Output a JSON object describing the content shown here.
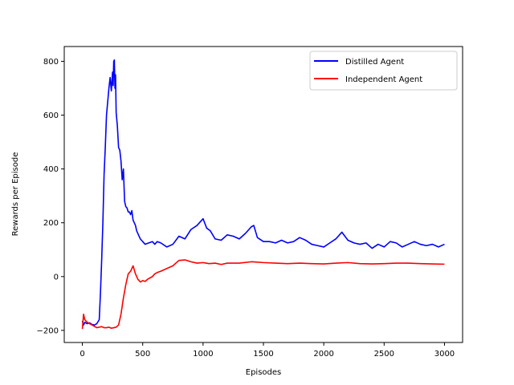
{
  "chart_data": {
    "type": "line",
    "xlabel": "Episodes",
    "ylabel": "Rewards per Episode",
    "xlim": [
      -150,
      3150
    ],
    "ylim": [
      -245,
      855
    ],
    "xticks": [
      0,
      500,
      1000,
      1500,
      2000,
      2500,
      3000
    ],
    "yticks": [
      -200,
      0,
      200,
      400,
      600,
      800
    ],
    "legend_position": "top-right",
    "grid": false,
    "series": [
      {
        "name": "Distilled Agent",
        "color": "#0000ff",
        "x": [
          0,
          10,
          20,
          40,
          60,
          80,
          100,
          120,
          140,
          150,
          160,
          170,
          180,
          190,
          200,
          210,
          220,
          230,
          240,
          250,
          255,
          260,
          265,
          270,
          275,
          280,
          290,
          300,
          310,
          320,
          330,
          340,
          350,
          360,
          370,
          380,
          390,
          400,
          410,
          420,
          430,
          440,
          450,
          460,
          480,
          500,
          520,
          550,
          580,
          600,
          620,
          650,
          700,
          750,
          800,
          850,
          900,
          950,
          980,
          1000,
          1030,
          1060,
          1100,
          1150,
          1200,
          1250,
          1300,
          1350,
          1400,
          1420,
          1450,
          1500,
          1550,
          1600,
          1650,
          1700,
          1750,
          1800,
          1850,
          1900,
          1950,
          2000,
          2050,
          2100,
          2150,
          2200,
          2250,
          2300,
          2350,
          2400,
          2450,
          2500,
          2550,
          2600,
          2650,
          2700,
          2750,
          2800,
          2850,
          2900,
          2950,
          3000
        ],
        "y": [
          -165,
          -180,
          -170,
          -175,
          -172,
          -178,
          -180,
          -175,
          -160,
          -60,
          60,
          200,
          380,
          480,
          600,
          650,
          700,
          740,
          690,
          760,
          710,
          800,
          805,
          700,
          750,
          610,
          560,
          480,
          470,
          430,
          360,
          400,
          280,
          260,
          255,
          240,
          240,
          230,
          245,
          210,
          200,
          190,
          170,
          160,
          140,
          130,
          120,
          125,
          130,
          120,
          130,
          125,
          110,
          120,
          150,
          140,
          175,
          190,
          205,
          215,
          180,
          170,
          140,
          135,
          155,
          150,
          140,
          160,
          185,
          190,
          145,
          130,
          130,
          125,
          135,
          125,
          130,
          145,
          135,
          120,
          115,
          110,
          125,
          140,
          165,
          135,
          125,
          120,
          125,
          105,
          120,
          110,
          130,
          125,
          110,
          120,
          130,
          120,
          115,
          120,
          110,
          120
        ]
      },
      {
        "name": "Independent Agent",
        "color": "#ff0000",
        "x": [
          0,
          10,
          20,
          40,
          60,
          80,
          100,
          120,
          140,
          160,
          180,
          200,
          220,
          240,
          260,
          280,
          300,
          320,
          340,
          360,
          380,
          400,
          420,
          440,
          460,
          480,
          500,
          520,
          540,
          560,
          580,
          600,
          620,
          650,
          700,
          750,
          800,
          850,
          900,
          950,
          1000,
          1050,
          1100,
          1150,
          1200,
          1300,
          1400,
          1500,
          1600,
          1700,
          1800,
          1900,
          2000,
          2100,
          2200,
          2300,
          2400,
          2500,
          2600,
          2700,
          2800,
          2900,
          3000
        ],
        "y": [
          -195,
          -140,
          -160,
          -170,
          -175,
          -180,
          -185,
          -190,
          -188,
          -186,
          -190,
          -190,
          -188,
          -192,
          -190,
          -188,
          -180,
          -140,
          -80,
          -30,
          10,
          20,
          40,
          10,
          -10,
          -20,
          -15,
          -18,
          -10,
          -5,
          0,
          10,
          15,
          20,
          30,
          40,
          60,
          62,
          55,
          50,
          52,
          48,
          50,
          45,
          50,
          50,
          55,
          52,
          50,
          48,
          50,
          48,
          47,
          50,
          52,
          48,
          47,
          48,
          50,
          50,
          48,
          47,
          46
        ]
      }
    ]
  }
}
